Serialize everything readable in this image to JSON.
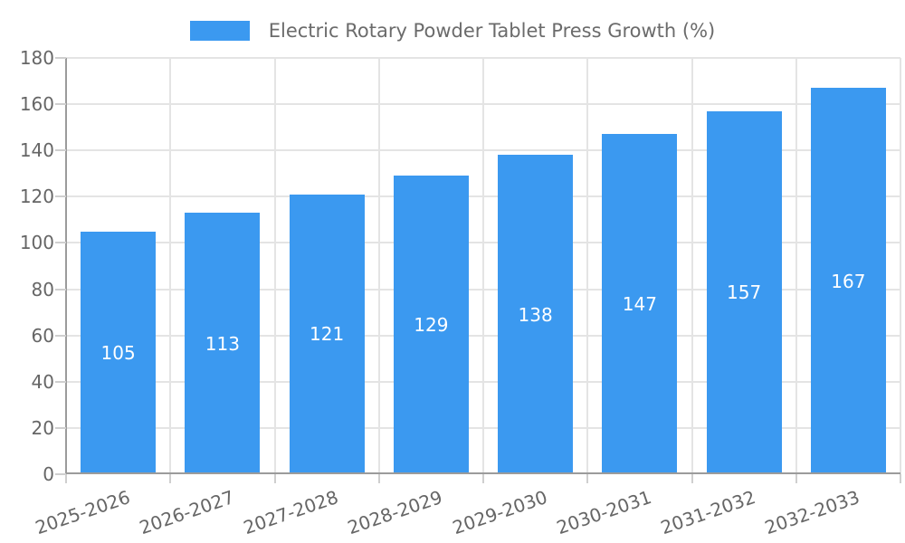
{
  "chart_data": {
    "type": "bar",
    "title": "Electric Rotary Powder Tablet Press Growth (%)",
    "legend": {
      "label": "Electric Rotary Powder Tablet Press Growth (%)",
      "position": "top-center"
    },
    "categories": [
      "2025-2026",
      "2026-2027",
      "2027-2028",
      "2028-2029",
      "2029-2030",
      "2030-2031",
      "2031-2032",
      "2032-2033"
    ],
    "values": [
      105,
      113,
      121,
      129,
      138,
      147,
      157,
      167
    ],
    "xlabel": "",
    "ylabel": "",
    "ylim": [
      0,
      180
    ],
    "yticks": [
      0,
      20,
      40,
      60,
      80,
      100,
      120,
      140,
      160,
      180
    ],
    "grid": true,
    "bar_label_position": "center",
    "x_tick_label_rotation_deg": -19,
    "colors": {
      "bar": "#3B99F0",
      "bar_label": "#FFFFFF",
      "axis_line": "#9B9B9B",
      "grid_line": "#E4E4E4",
      "tick_mark": "#CFCFCF",
      "tick_label": "#666666",
      "legend_text": "#6B6B6B",
      "background": "#FFFFFF"
    }
  }
}
